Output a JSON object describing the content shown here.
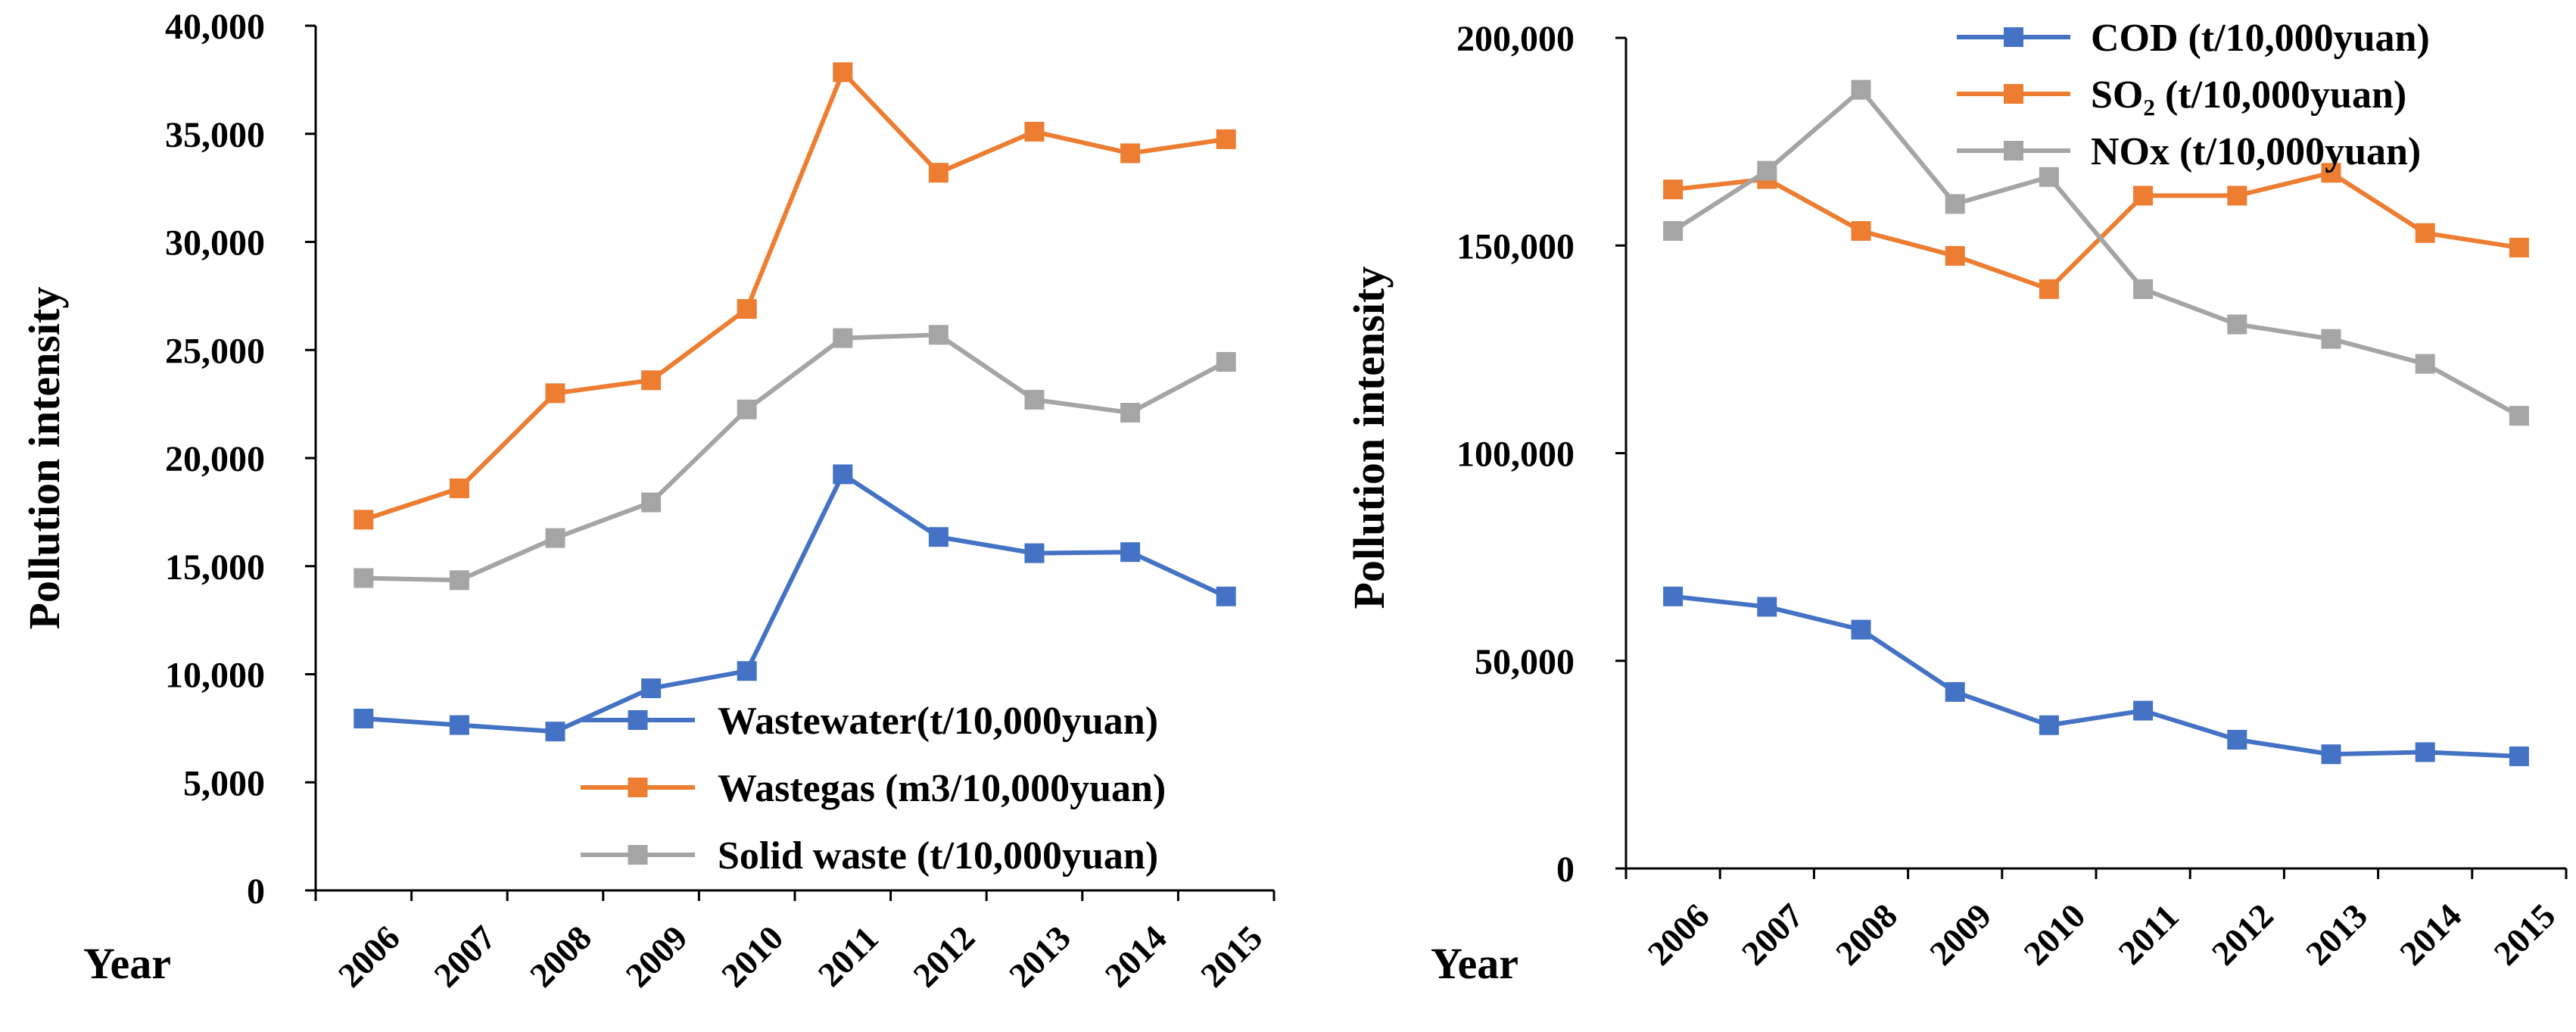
{
  "chart_data": [
    {
      "type": "line",
      "title": "",
      "xlabel": "Year",
      "ylabel": "Pollution intensity",
      "categories": [
        "2006",
        "2007",
        "2008",
        "2009",
        "2010",
        "2011",
        "2012",
        "2013",
        "2014",
        "2015"
      ],
      "ylim": [
        0,
        40000
      ],
      "yticks": [
        "0",
        "5,000",
        "10,000",
        "15,000",
        "20,000",
        "25,000",
        "30,000",
        "35,000",
        "40,000"
      ],
      "grid": false,
      "legend_position": "bottom-right",
      "series": [
        {
          "name": "Wastewater(t/10,000yuan)",
          "color": "#4472C4",
          "marker": "square",
          "values": [
            7950,
            7650,
            7350,
            9350,
            10150,
            19250,
            16350,
            15600,
            15650,
            13600
          ]
        },
        {
          "name": "Wastegas (m3/10,000yuan)",
          "color": "#ED7D31",
          "marker": "square",
          "values": [
            17150,
            18600,
            23000,
            23600,
            26900,
            37850,
            33200,
            35100,
            34100,
            34750
          ]
        },
        {
          "name": "Solid waste (t/10,000yuan)",
          "color": "#A5A5A5",
          "marker": "square",
          "values": [
            14450,
            14350,
            16300,
            17950,
            22250,
            25550,
            25700,
            22700,
            22100,
            24450
          ]
        }
      ]
    },
    {
      "type": "line",
      "title": "",
      "xlabel": "Year",
      "ylabel": "Pollution intensity",
      "categories": [
        "2006",
        "2007",
        "2008",
        "2009",
        "2010",
        "2011",
        "2012",
        "2013",
        "2014",
        "2015"
      ],
      "ylim": [
        0,
        200000
      ],
      "yticks": [
        "0",
        "50,000",
        "100,000",
        "150,000",
        "200,000"
      ],
      "grid": false,
      "legend_position": "top-right",
      "series": [
        {
          "name": "COD (t/10,000yuan)",
          "color": "#4472C4",
          "marker": "square",
          "values": [
            65500,
            63000,
            57500,
            42500,
            34500,
            38000,
            31000,
            27500,
            28000,
            27000
          ]
        },
        {
          "name": "SO₂ (t/10,000yuan)",
          "color": "#ED7D31",
          "marker": "square",
          "values": [
            163500,
            166000,
            153500,
            147500,
            139500,
            162000,
            162000,
            167500,
            153000,
            149500
          ]
        },
        {
          "name": "NOx (t/10,000yuan)",
          "color": "#A5A5A5",
          "marker": "square",
          "values": [
            153500,
            168000,
            187500,
            160000,
            166500,
            139500,
            131000,
            127500,
            121500,
            109000
          ]
        }
      ]
    }
  ]
}
